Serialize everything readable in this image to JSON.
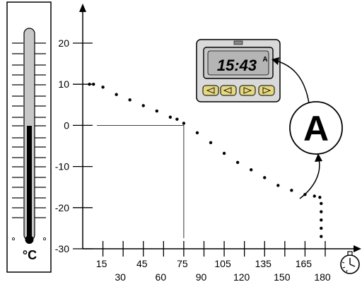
{
  "thermometer": {
    "unit_label": "°C"
  },
  "y_axis": {
    "ticks": [
      {
        "label": "20",
        "value": 20
      },
      {
        "label": "10",
        "value": 10
      },
      {
        "label": "0",
        "value": 0
      },
      {
        "label": "-10",
        "value": -10
      },
      {
        "label": "-20",
        "value": -20
      },
      {
        "label": "-30",
        "value": -30
      }
    ]
  },
  "x_axis": {
    "ticks": [
      {
        "label": "15",
        "value": 15
      },
      {
        "label": "30",
        "value": 30
      },
      {
        "label": "45",
        "value": 45
      },
      {
        "label": "60",
        "value": 60
      },
      {
        "label": "75",
        "value": 75
      },
      {
        "label": "90",
        "value": 90
      },
      {
        "label": "105",
        "value": 105
      },
      {
        "label": "120",
        "value": 120
      },
      {
        "label": "135",
        "value": 135
      },
      {
        "label": "150",
        "value": 150
      },
      {
        "label": "165",
        "value": 165
      },
      {
        "label": "180",
        "value": 180
      }
    ],
    "icon": "stopwatch-icon"
  },
  "timer": {
    "display_time": "15:43",
    "display_mode": "A"
  },
  "callout": {
    "label": "A"
  },
  "chart_data": {
    "type": "line",
    "xlim": [
      0,
      182
    ],
    "ylim": [
      -30,
      28
    ],
    "series": [
      {
        "points": [
          {
            "x": 5,
            "y": 10
          },
          {
            "x": 8,
            "y": 10
          },
          {
            "x": 15,
            "y": 9.3
          },
          {
            "x": 25,
            "y": 7.5
          },
          {
            "x": 35,
            "y": 6.2
          },
          {
            "x": 45,
            "y": 4.8
          },
          {
            "x": 55,
            "y": 3.5
          },
          {
            "x": 65,
            "y": 2.0
          },
          {
            "x": 70,
            "y": 1.5
          },
          {
            "x": 75,
            "y": 0.5
          },
          {
            "x": 85,
            "y": -1.8
          },
          {
            "x": 95,
            "y": -4.2
          },
          {
            "x": 105,
            "y": -6.8
          },
          {
            "x": 115,
            "y": -9.0
          },
          {
            "x": 125,
            "y": -10.8
          },
          {
            "x": 135,
            "y": -12.7
          },
          {
            "x": 145,
            "y": -14.6
          },
          {
            "x": 155,
            "y": -15.8
          },
          {
            "x": 165,
            "y": -16.8
          },
          {
            "x": 172,
            "y": -17.2
          },
          {
            "x": 176,
            "y": -17.5
          },
          {
            "x": 177,
            "y": -19
          },
          {
            "x": 177,
            "y": -21
          },
          {
            "x": 177,
            "y": -23
          },
          {
            "x": 177,
            "y": -25
          },
          {
            "x": 177,
            "y": -27
          }
        ]
      }
    ],
    "guides": {
      "x": 75,
      "y": 0
    },
    "marker_reference": {
      "x": 172,
      "y": -17.2
    }
  }
}
